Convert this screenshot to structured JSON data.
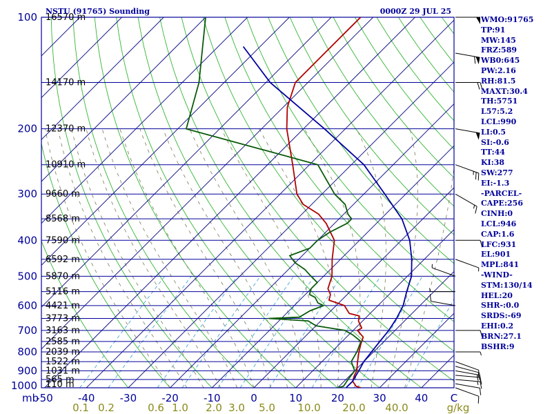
{
  "chart_data": {
    "type": "line",
    "title": "NSTU (91765) Sounding",
    "valid_time": "0000Z 29 JUL 25",
    "xlabel": "",
    "ylabel": "",
    "xlim": [
      -50,
      50
    ],
    "pressure_levels": [
      100,
      200,
      300,
      400,
      500,
      600,
      700,
      800,
      900,
      1000
    ],
    "pressure_axis_label": "mb",
    "temperature_ticks": [
      "-50",
      "-40",
      "-30",
      "-20",
      "-10",
      "0",
      "10",
      "20",
      "30",
      "40",
      "C"
    ],
    "mixing_ratio_ticks": [
      "0.1",
      "0.2",
      "0.6",
      "1.0",
      "2.0",
      "3.0",
      "5.0",
      "10.0",
      "20.0",
      "40.0",
      "g/kg"
    ],
    "height_labels": [
      {
        "p": 100,
        "label": "16570 m"
      },
      {
        "p": 150,
        "label": "14170 m"
      },
      {
        "p": 200,
        "label": "12370 m"
      },
      {
        "p": 250,
        "label": "10910 m"
      },
      {
        "p": 300,
        "label": "9660 m"
      },
      {
        "p": 350,
        "label": "8568 m"
      },
      {
        "p": 400,
        "label": "7590 m"
      },
      {
        "p": 450,
        "label": "6592 m"
      },
      {
        "p": 500,
        "label": "5870 m"
      },
      {
        "p": 550,
        "label": "5116 m"
      },
      {
        "p": 600,
        "label": "4421 m"
      },
      {
        "p": 650,
        "label": "3773 m"
      },
      {
        "p": 700,
        "label": "3163 m"
      },
      {
        "p": 750,
        "label": "2585 m"
      },
      {
        "p": 800,
        "label": "2039 m"
      },
      {
        "p": 850,
        "label": "1522 m"
      },
      {
        "p": 900,
        "label": "1031 m"
      },
      {
        "p": 950,
        "label": "565 m"
      },
      {
        "p": 1000,
        "label": "110 m"
      }
    ],
    "series": [
      {
        "color": "#b00000",
        "points": [
          [
            1000,
            25.5
          ],
          [
            990,
            24
          ],
          [
            960,
            22
          ],
          [
            925,
            21
          ],
          [
            900,
            20.5
          ],
          [
            850,
            18.5
          ],
          [
            800,
            16.5
          ],
          [
            760,
            15
          ],
          [
            730,
            14
          ],
          [
            700,
            11
          ],
          [
            690,
            11.5
          ],
          [
            660,
            9
          ],
          [
            640,
            8
          ],
          [
            630,
            5
          ],
          [
            610,
            3
          ],
          [
            600,
            2
          ],
          [
            580,
            -3
          ],
          [
            560,
            -4
          ],
          [
            540,
            -6
          ],
          [
            500,
            -8
          ],
          [
            450,
            -12
          ],
          [
            400,
            -16
          ],
          [
            360,
            -22
          ],
          [
            340,
            -26
          ],
          [
            320,
            -32
          ],
          [
            300,
            -36
          ],
          [
            250,
            -44
          ],
          [
            200,
            -54
          ],
          [
            175,
            -59
          ],
          [
            150,
            -63
          ],
          [
            125,
            -63
          ],
          [
            100,
            -63
          ]
        ]
      },
      {
        "color": "#0a5a0a",
        "points": [
          [
            1000,
            20
          ],
          [
            990,
            21
          ],
          [
            950,
            20.5
          ],
          [
            900,
            20
          ],
          [
            850,
            17
          ],
          [
            800,
            16
          ],
          [
            750,
            14.5
          ],
          [
            720,
            11
          ],
          [
            700,
            8
          ],
          [
            690,
            4
          ],
          [
            680,
            0
          ],
          [
            660,
            -3
          ],
          [
            650,
            -13
          ],
          [
            645,
            -6
          ],
          [
            620,
            -5
          ],
          [
            600,
            -3
          ],
          [
            590,
            -5
          ],
          [
            570,
            -7
          ],
          [
            560,
            -9
          ],
          [
            540,
            -10
          ],
          [
            520,
            -10
          ],
          [
            500,
            -13
          ],
          [
            480,
            -16
          ],
          [
            460,
            -20
          ],
          [
            440,
            -23
          ],
          [
            420,
            -20
          ],
          [
            400,
            -20
          ],
          [
            380,
            -19
          ],
          [
            360,
            -17
          ],
          [
            350,
            -17
          ],
          [
            340,
            -19
          ],
          [
            320,
            -22
          ],
          [
            300,
            -27
          ],
          [
            250,
            -38
          ],
          [
            200,
            -78
          ],
          [
            150,
            -86
          ],
          [
            100,
            -100
          ]
        ]
      },
      {
        "color": "#0000a0",
        "points": [
          [
            1000,
            22
          ],
          [
            960,
            22
          ],
          [
            930,
            21.5
          ],
          [
            900,
            21
          ],
          [
            850,
            20
          ],
          [
            800,
            19.5
          ],
          [
            750,
            19
          ],
          [
            700,
            18.5
          ],
          [
            650,
            17.5
          ],
          [
            600,
            16
          ],
          [
            550,
            13.5
          ],
          [
            500,
            11
          ],
          [
            450,
            7
          ],
          [
            400,
            2
          ],
          [
            350,
            -5
          ],
          [
            300,
            -15
          ],
          [
            250,
            -27
          ],
          [
            200,
            -45
          ],
          [
            150,
            -69
          ],
          [
            120,
            -84
          ]
        ]
      }
    ],
    "wind_barbs": [
      {
        "p": 1000,
        "dir": 110,
        "spd": 10
      },
      {
        "p": 975,
        "dir": 100,
        "spd": 10
      },
      {
        "p": 950,
        "dir": 95,
        "spd": 15
      },
      {
        "p": 925,
        "dir": 95,
        "spd": 15
      },
      {
        "p": 900,
        "dir": 100,
        "spd": 15
      },
      {
        "p": 875,
        "dir": 105,
        "spd": 10
      },
      {
        "p": 850,
        "dir": 110,
        "spd": 10
      },
      {
        "p": 800,
        "dir": 90,
        "spd": 5
      },
      {
        "p": 700,
        "dir": 90,
        "spd": 10
      },
      {
        "p": 600,
        "dir": 280,
        "spd": 10
      },
      {
        "p": 550,
        "dir": 270,
        "spd": 5
      },
      {
        "p": 500,
        "dir": 290,
        "spd": 5
      },
      {
        "p": 450,
        "dir": 110,
        "spd": 5
      },
      {
        "p": 400,
        "dir": 90,
        "spd": 10
      },
      {
        "p": 300,
        "dir": 120,
        "spd": 15
      },
      {
        "p": 250,
        "dir": 110,
        "spd": 25
      },
      {
        "p": 200,
        "dir": 100,
        "spd": 50
      },
      {
        "p": 150,
        "dir": 90,
        "spd": 20
      },
      {
        "p": 125,
        "dir": 100,
        "spd": 60
      },
      {
        "p": 100,
        "dir": 90,
        "spd": 50
      }
    ],
    "colors": {
      "frame": "#00009a",
      "isobar": "#00009a",
      "isotherm": "#1a1a8a",
      "dry_adiabat": "#33b533",
      "moist_adiabat": "#7a7a5a",
      "mixing_ratio": "#44a6d6",
      "wind_barb": "#000000"
    }
  },
  "indices": [
    "WMO:91765",
    "TP:91",
    "MW:145",
    "FRZ:589",
    "WB0:645",
    "PW:2.16",
    "RH:81.5",
    "MAXT:30.4",
    "TH:5751",
    "L57:5.2",
    "LCL:990",
    "LI:0.5",
    "SI:-0.6",
    "TT:44",
    "KI:38",
    "SW:277",
    "EI:-1.3",
    "-PARCEL-",
    "CAPE:256",
    "CINH:0",
    "LCL:946",
    "CAP:1.6",
    "LFC:931",
    "EL:901",
    "MPL:841",
    "-WIND-",
    "STM:130/14",
    "HEL:20",
    "SHR-:0.0",
    "SRDS:-69",
    "EHI:0.2",
    "BRN:27.1",
    "BSHR:9"
  ]
}
